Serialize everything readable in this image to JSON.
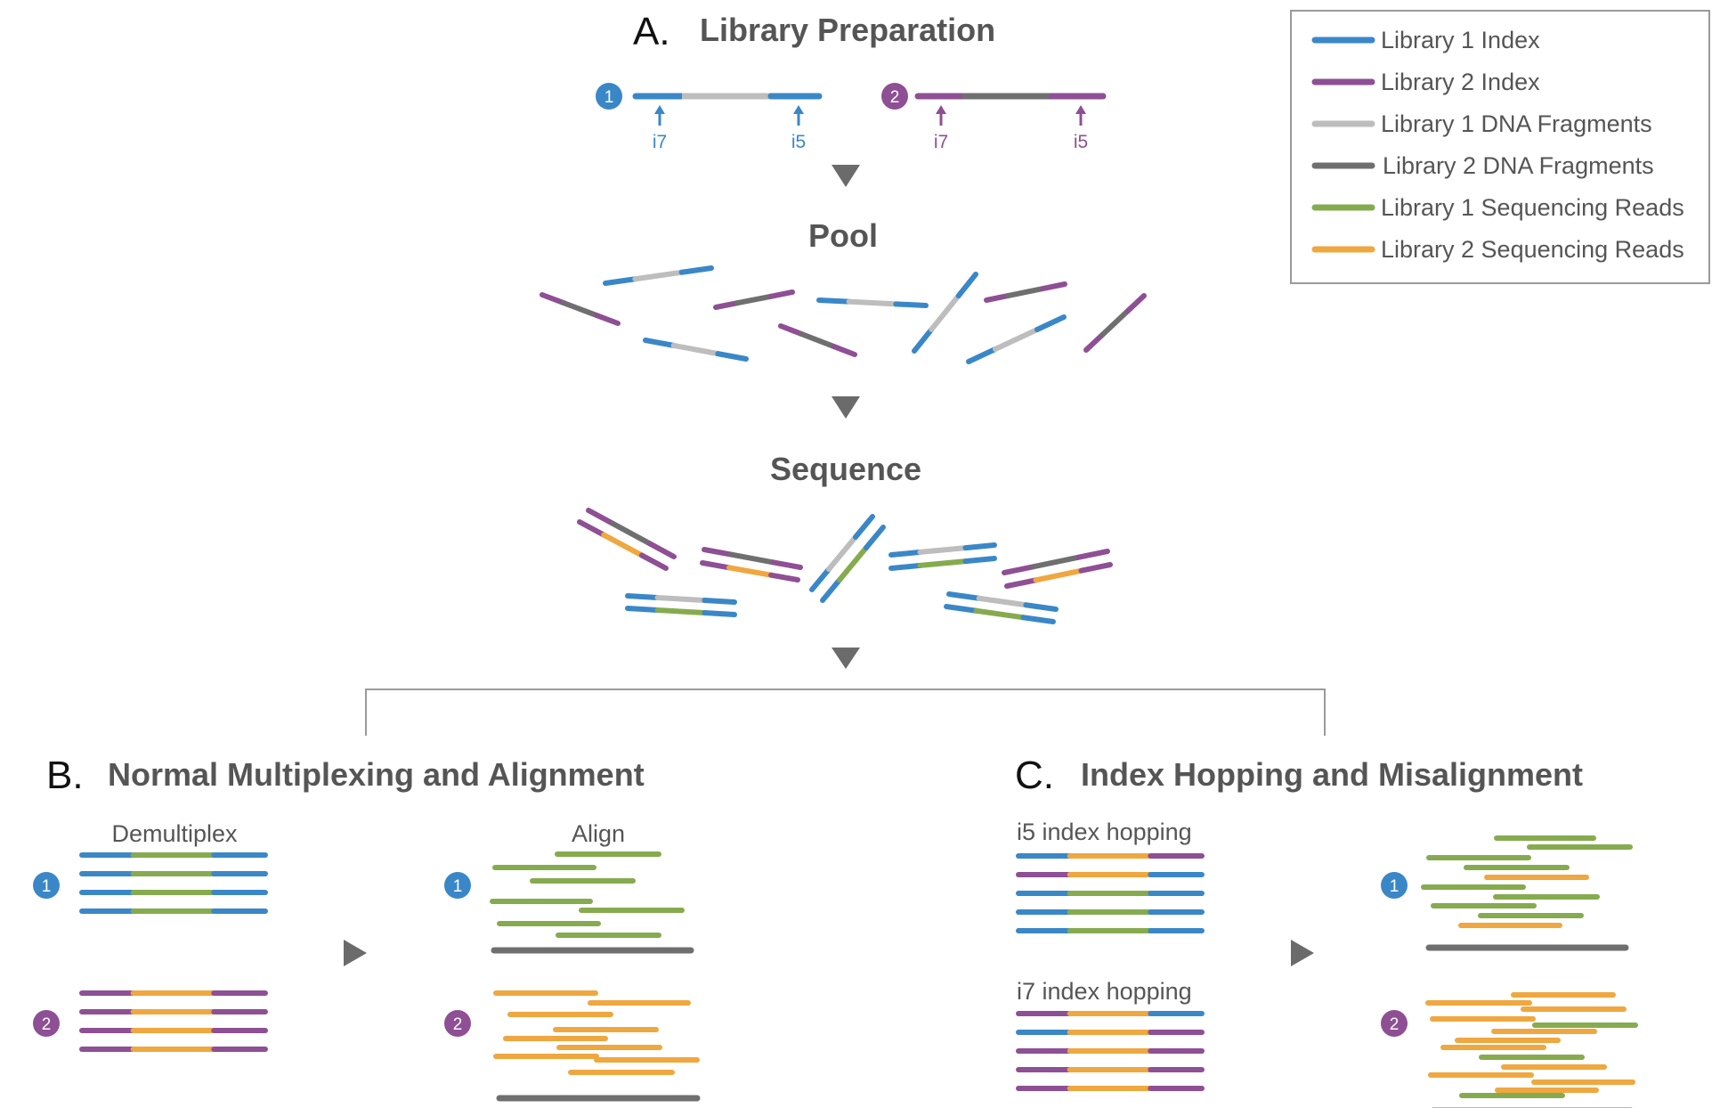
{
  "colors": {
    "lib1_index": "#3a87c8",
    "lib2_index": "#8e4f94",
    "lib1_fragment": "#bdbdbd",
    "lib2_fragment": "#6f6f6f",
    "lib1_reads": "#86ab4f",
    "lib2_reads": "#efa73f",
    "arrow": "#6b6b6b",
    "frame": "#9a9a9a"
  },
  "legend": {
    "items": [
      {
        "label": "Library 1 Index",
        "color_key": "lib1_index"
      },
      {
        "label": "Library 2 Index",
        "color_key": "lib2_index"
      },
      {
        "label": "Library 1 DNA Fragments",
        "color_key": "lib1_fragment"
      },
      {
        "label": "Library 2 DNA Fragments",
        "color_key": "lib2_fragment"
      },
      {
        "label": "Library 1 Sequencing Reads",
        "color_key": "lib1_reads"
      },
      {
        "label": "Library 2 Sequencing Reads",
        "color_key": "lib2_reads"
      }
    ]
  },
  "section_a": {
    "letter": "A.",
    "title": "Library Preparation",
    "library_badges": [
      "1",
      "2"
    ],
    "index_labels": [
      "i7",
      "i5"
    ],
    "pool_label": "Pool",
    "sequence_label": "Sequence"
  },
  "section_b": {
    "letter": "B.",
    "title": "Normal Multiplexing and Alignment",
    "demultiplex_label": "Demultiplex",
    "align_label": "Align",
    "library_badges": [
      "1",
      "2"
    ]
  },
  "section_c": {
    "letter": "C.",
    "title": "Index Hopping and Misalignment",
    "i5_hopping_label": "i5 index hopping",
    "i7_hopping_label": "i7 index hopping",
    "library_badges": [
      "1",
      "2"
    ]
  }
}
